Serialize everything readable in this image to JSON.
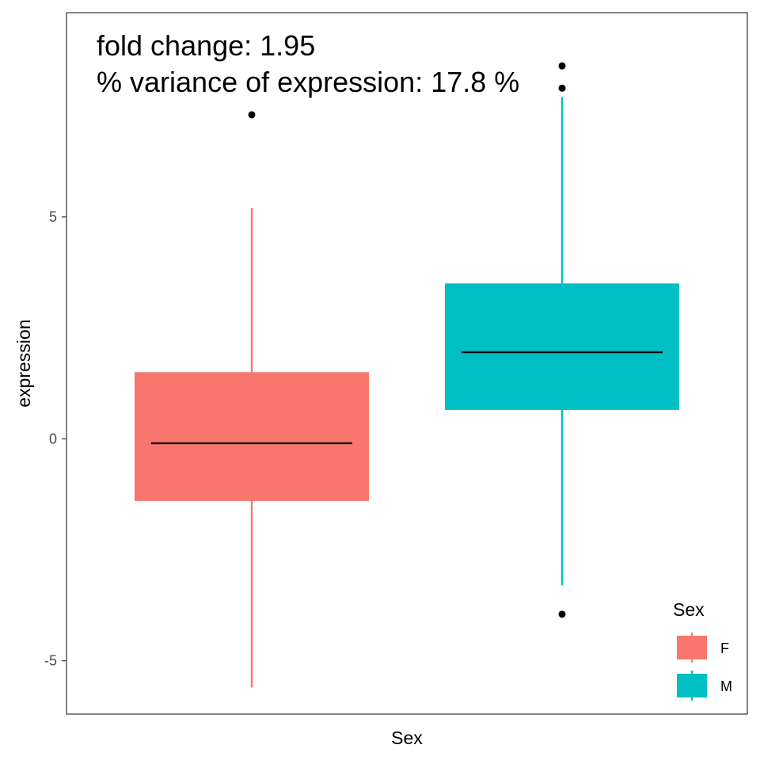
{
  "chart_data": {
    "type": "box",
    "xlabel": "Sex",
    "ylabel": "expression",
    "ylim": [
      -6.2,
      9.6
    ],
    "yticks": [
      -5,
      0,
      5
    ],
    "annotations": [
      "fold change: 1.95",
      "% variance of expression: 17.8 %"
    ],
    "legend": {
      "title": "Sex",
      "position": "bottom-right",
      "entries": [
        "F",
        "M"
      ]
    },
    "series": [
      {
        "name": "F",
        "color": "#F8766D",
        "min": -5.6,
        "q1": -1.4,
        "median": -0.1,
        "q3": 1.5,
        "max": 5.2,
        "outliers": [
          7.3
        ]
      },
      {
        "name": "M",
        "color": "#00BFC4",
        "min": -3.3,
        "q1": 0.65,
        "median": 1.95,
        "q3": 3.5,
        "max": 7.7,
        "outliers": [
          8.4,
          7.9,
          -3.95
        ]
      }
    ]
  }
}
